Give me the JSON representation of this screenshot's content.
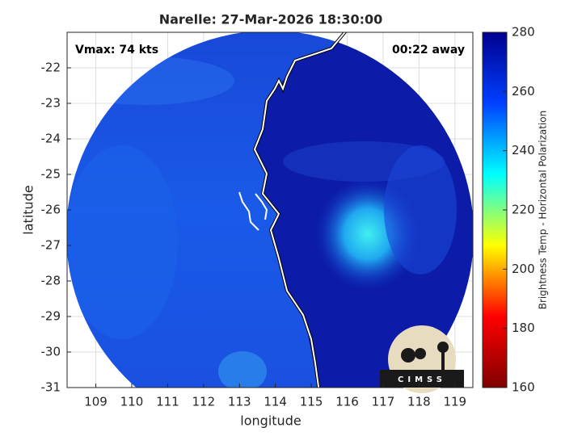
{
  "title": "Narelle: 27-Mar-2026 18:30:00",
  "annotations": {
    "vmax": "Vmax: 74 kts",
    "time_away": "00:22 away"
  },
  "x_axis": {
    "label": "longitude",
    "lim": [
      108.2,
      119.5
    ],
    "ticks": [
      109,
      110,
      111,
      112,
      113,
      114,
      115,
      116,
      117,
      118,
      119
    ]
  },
  "y_axis": {
    "label": "latitude",
    "lim": [
      -31,
      -21
    ],
    "ticks": [
      -31,
      -30,
      -29,
      -28,
      -27,
      -26,
      -25,
      -24,
      -23,
      -22
    ]
  },
  "colorbar": {
    "label": "Brightness Temp - Horizontal Polarization",
    "lim": [
      160,
      280
    ],
    "ticks": [
      160,
      180,
      200,
      220,
      240,
      260,
      280
    ],
    "colors": [
      "#800000",
      "#ff0000",
      "#ffff00",
      "#00ffff",
      "#0040ff",
      "#00008f"
    ]
  },
  "grid": true,
  "logo": "CIMSS"
}
